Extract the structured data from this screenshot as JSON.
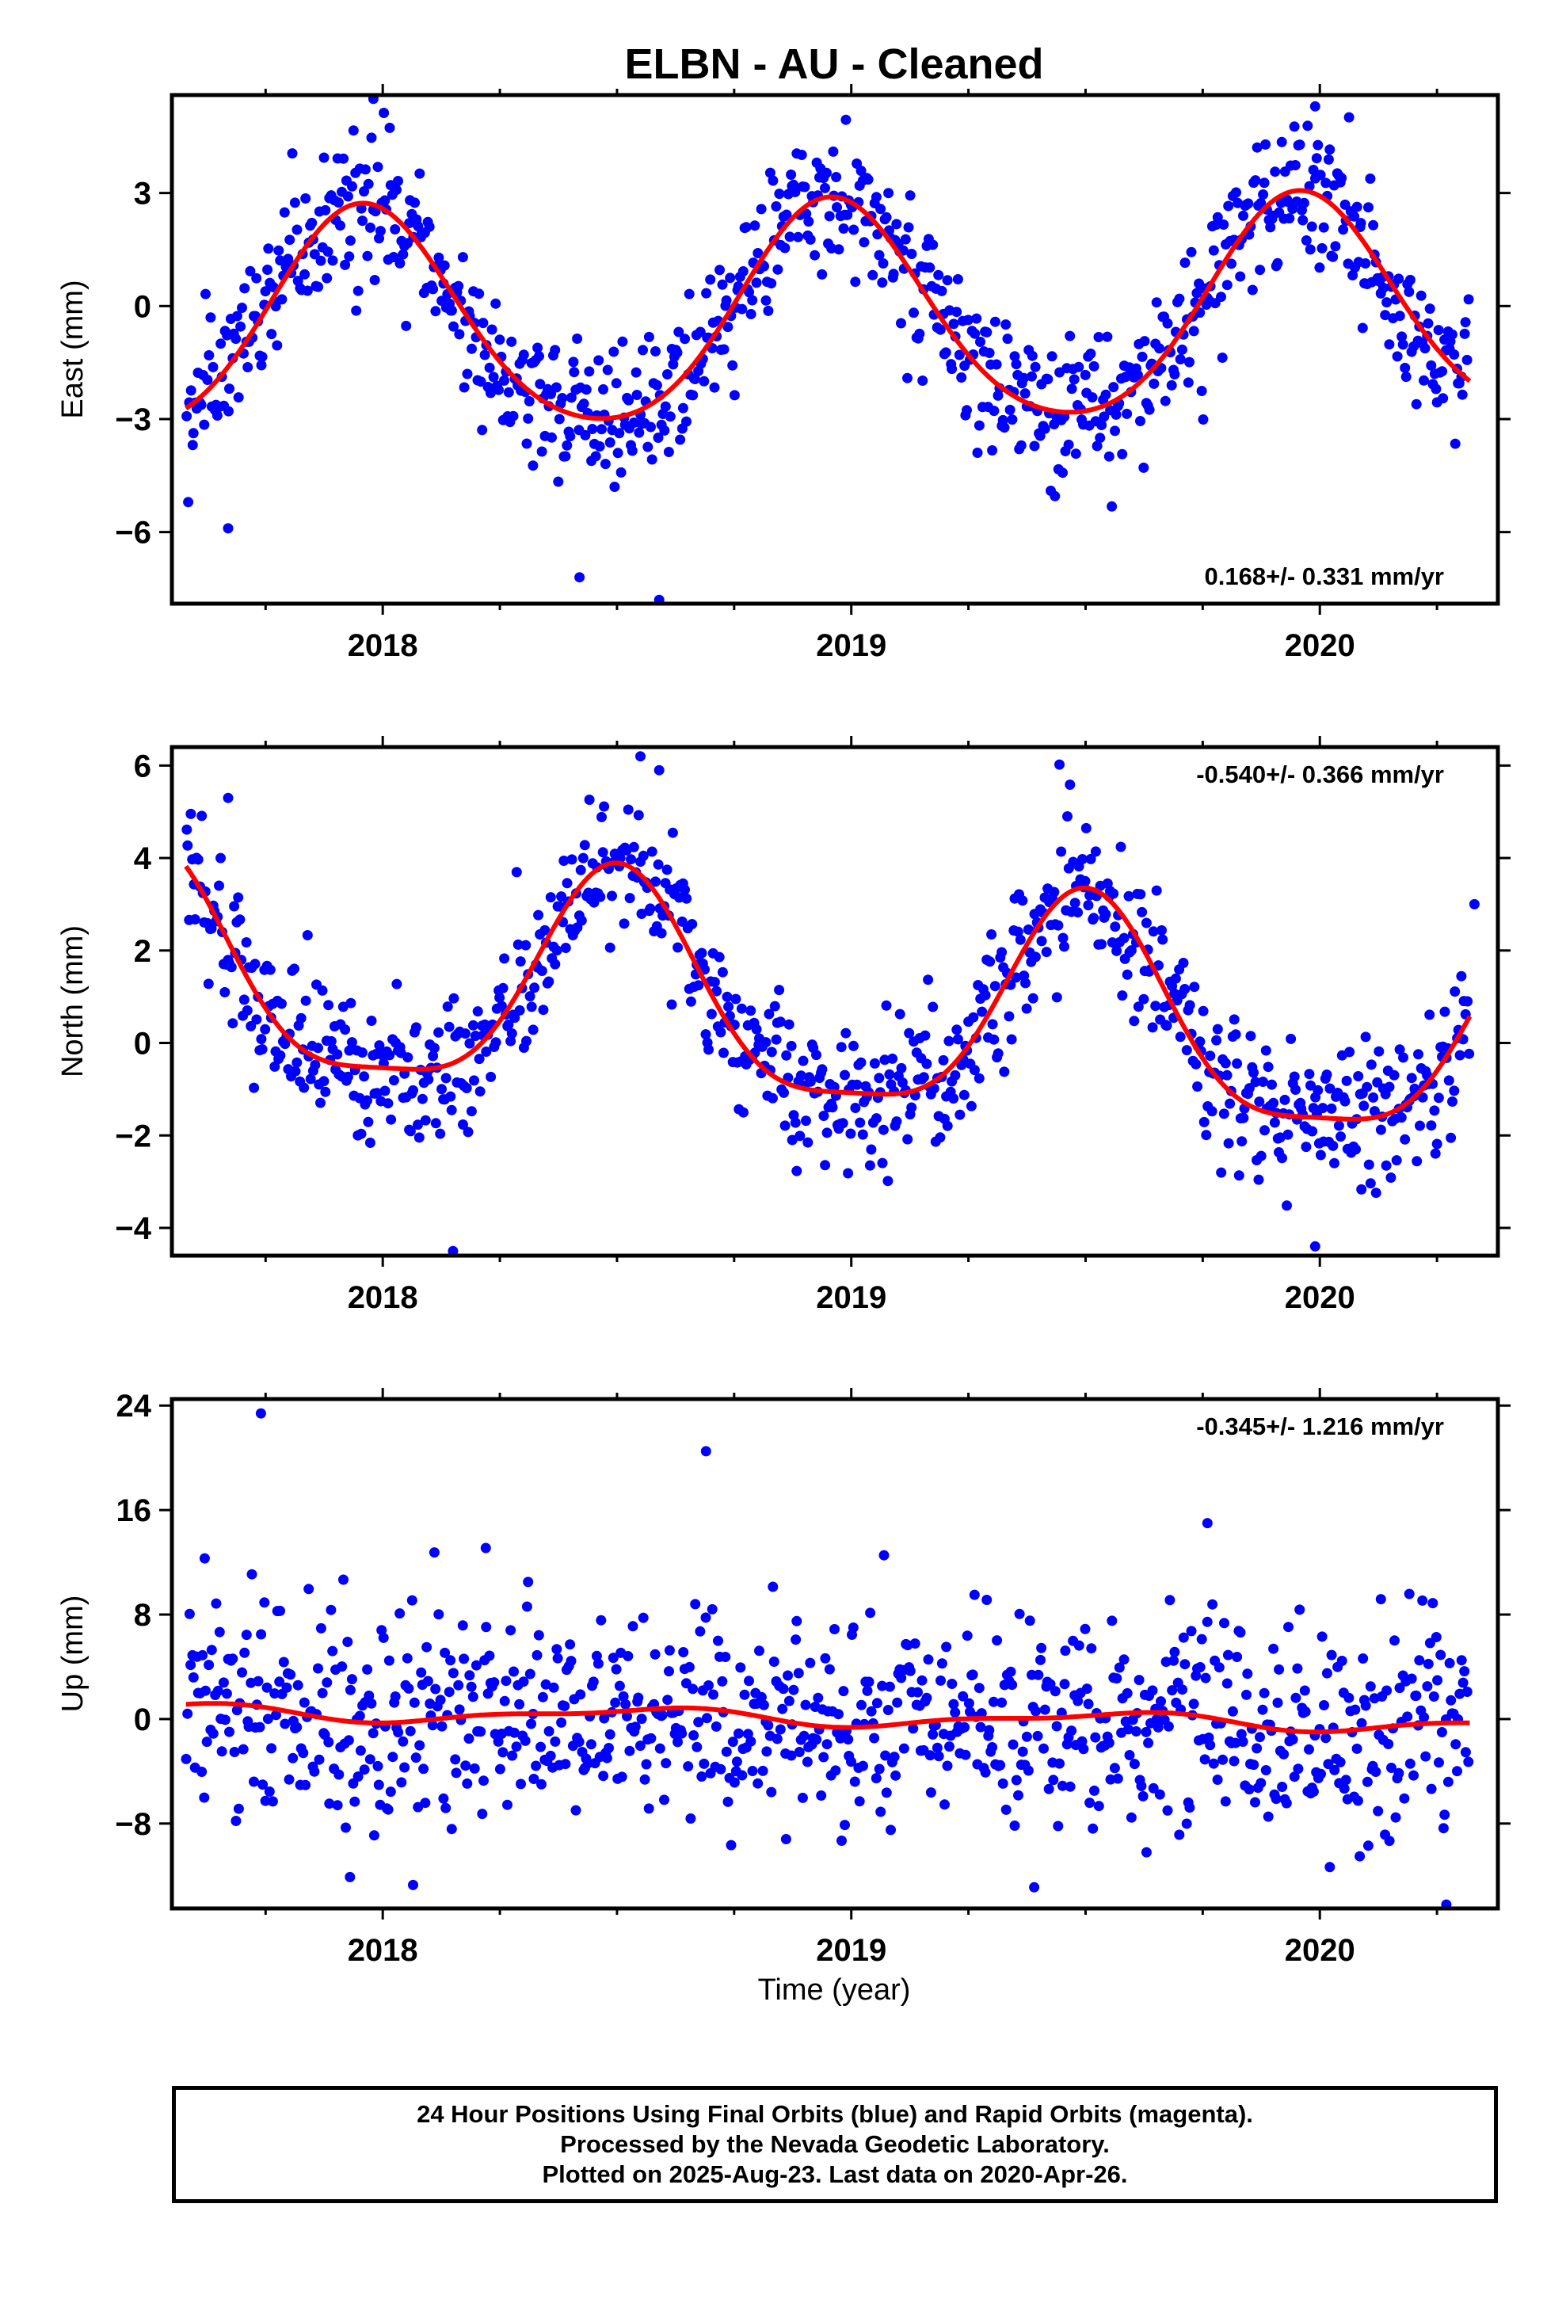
{
  "title": "ELBN  - AU - Cleaned",
  "xlabel": "Time (year)",
  "colors": {
    "points": "#0000ff",
    "fit": "#ff0000"
  },
  "footer": {
    "line1": "24 Hour Positions Using Final Orbits (blue) and Rapid Orbits (magenta).",
    "line2": "Processed by the Nevada Geodetic Laboratory.",
    "line3": "Plotted on 2025-Aug-23. Last data on 2020-Apr-26."
  },
  "chart_data": [
    {
      "type": "scatter",
      "component": "East",
      "ylabel": "East (mm)",
      "rate_label": "0.168+/- 0.331 mm/yr",
      "rate_position": "bottom-right",
      "xlim": [
        2017.55,
        2020.38
      ],
      "ylim": [
        -7.9,
        5.6
      ],
      "yticks": [
        -6,
        -3,
        0,
        3
      ],
      "xticks": [
        2018,
        2019,
        2020
      ],
      "grid": false,
      "fit_model": {
        "offset": -0.35,
        "trend": 0.168,
        "annual_amp": 2.9,
        "annual_peak": 2017.96,
        "semi_amp": 0.35,
        "semi_peak": 2017.95,
        "t0": 2018.95
      },
      "scatter_sd": 1.0,
      "outliers": [
        [
          2017.98,
          5.5
        ],
        [
          2018.42,
          -7.2
        ],
        [
          2018.59,
          -7.8
        ],
        [
          2019.99,
          5.3
        ],
        [
          2017.67,
          -5.9
        ]
      ]
    },
    {
      "type": "scatter",
      "component": "North",
      "ylabel": "North (mm)",
      "rate_label": "-0.540+/- 0.366 mm/yr",
      "rate_position": "top-right",
      "xlim": [
        2017.55,
        2020.38
      ],
      "ylim": [
        -4.6,
        6.4
      ],
      "yticks": [
        -4,
        -2,
        0,
        2,
        4,
        6
      ],
      "xticks": [
        2018,
        2019,
        2020
      ],
      "grid": false,
      "fit_model": {
        "offset": 0.7,
        "trend": -0.54,
        "annual_amp": 2.35,
        "annual_peak": 2018.5,
        "semi_amp": 0.6,
        "semi_peak": 2018.0,
        "t0": 2018.95
      },
      "scatter_sd": 0.8,
      "outliers": [
        [
          2017.67,
          5.3
        ],
        [
          2018.55,
          6.2
        ],
        [
          2018.59,
          5.9
        ],
        [
          2018.15,
          -4.5
        ],
        [
          2019.99,
          -4.4
        ],
        [
          2020.33,
          3.0
        ]
      ]
    },
    {
      "type": "scatter",
      "component": "Up",
      "ylabel": "Up (mm)",
      "rate_label": "-0.345+/- 1.216 mm/yr",
      "rate_position": "top-right",
      "xlim": [
        2017.55,
        2020.38
      ],
      "ylim": [
        -14.5,
        24.5
      ],
      "yticks": [
        -8,
        0,
        8,
        16,
        24
      ],
      "xticks": [
        2018,
        2019,
        2020
      ],
      "grid": false,
      "fit_model": {
        "offset": 0.1,
        "trend": -0.345,
        "annual_amp": 0.55,
        "annual_peak": 2018.55,
        "semi_amp": 0.25,
        "semi_peak": 2017.7,
        "t0": 2018.95
      },
      "scatter_sd": 4.0,
      "outliers": [
        [
          2017.74,
          23.4
        ],
        [
          2018.69,
          20.5
        ],
        [
          2019.76,
          15.0
        ],
        [
          2017.62,
          12.3
        ],
        [
          2018.22,
          13.1
        ],
        [
          2017.93,
          -12.1
        ],
        [
          2020.27,
          -14.2
        ],
        [
          2019.63,
          -10.2
        ]
      ]
    }
  ]
}
